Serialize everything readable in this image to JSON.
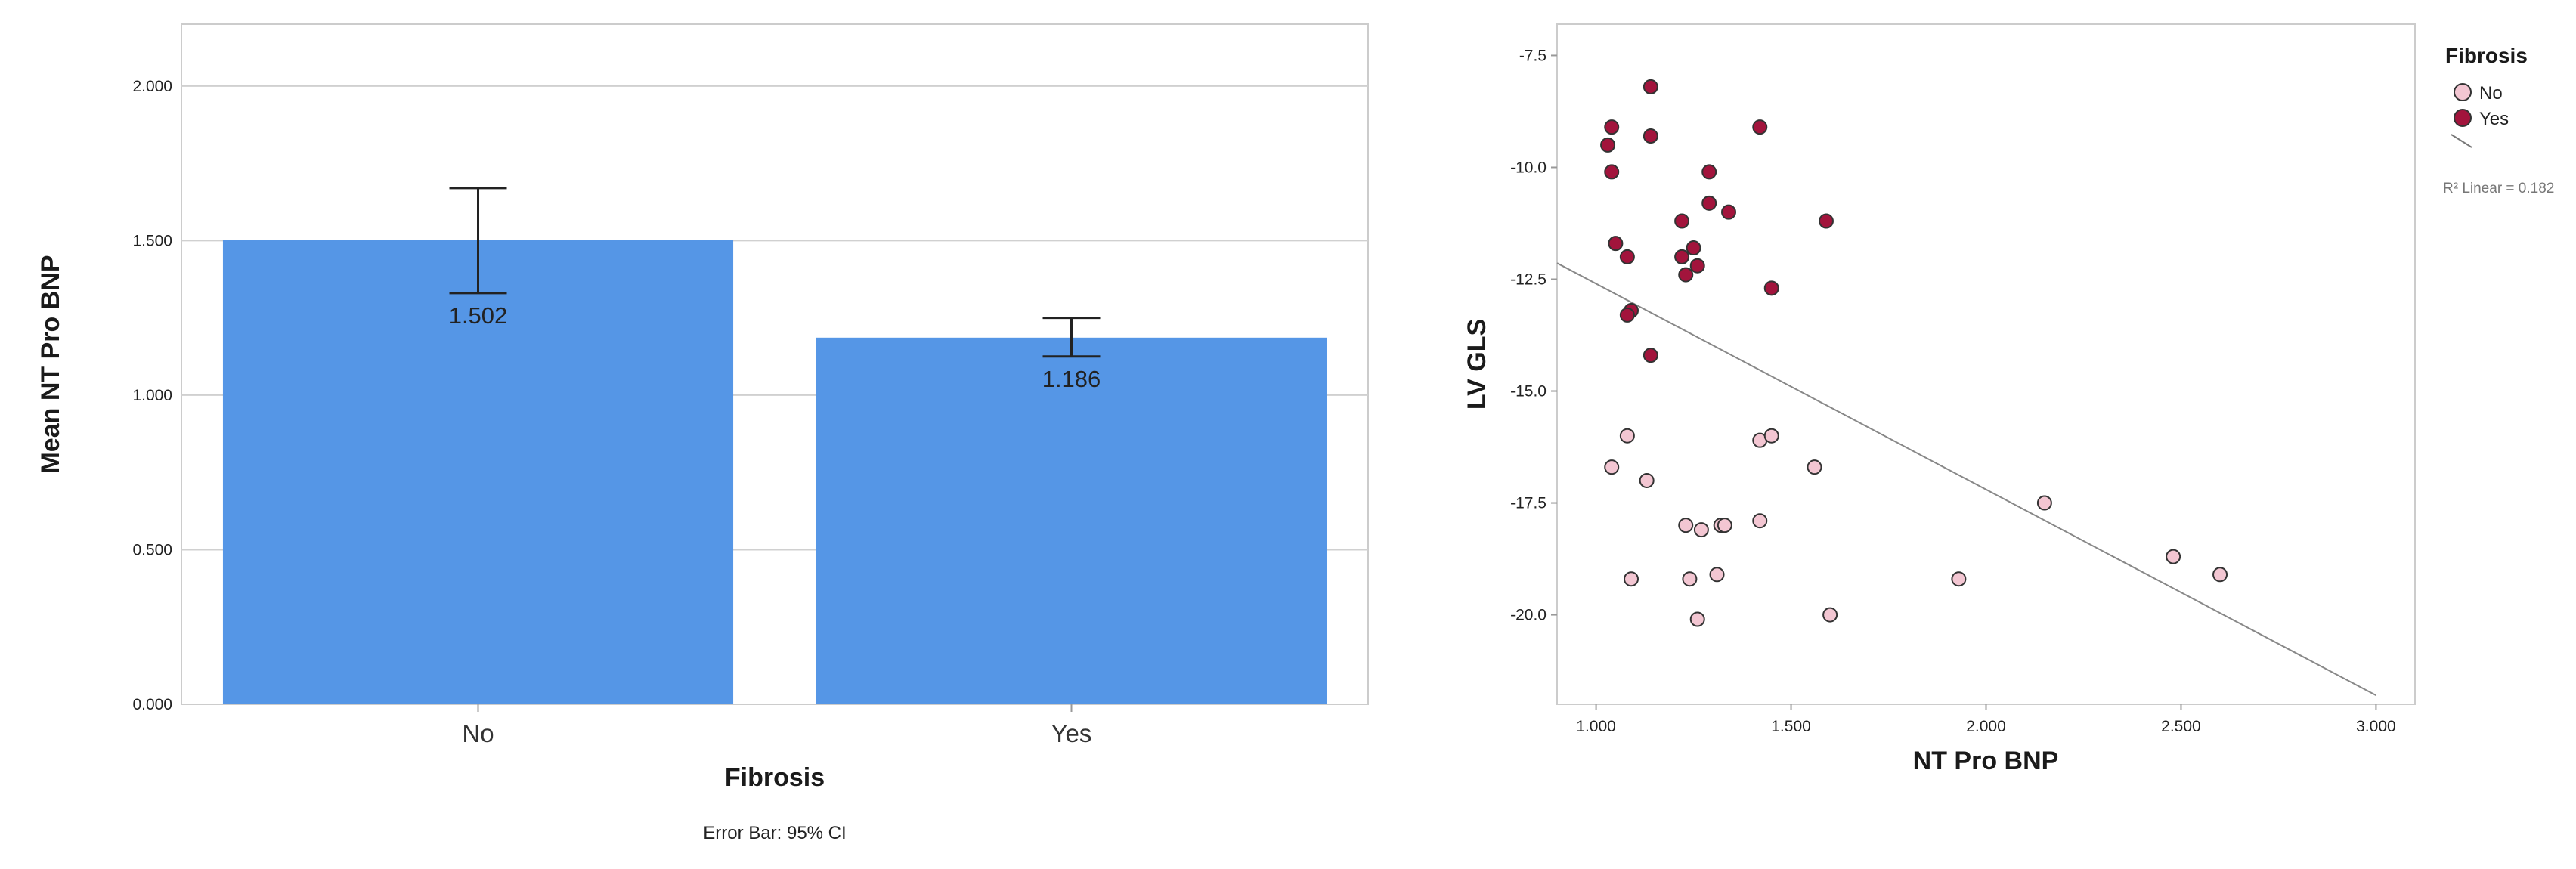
{
  "chart_data": [
    {
      "type": "bar",
      "categories": [
        "No",
        "Yes"
      ],
      "values": [
        1.502,
        1.186
      ],
      "value_labels": [
        "1.502",
        "1.186"
      ],
      "error_bars": [
        [
          1.33,
          1.67
        ],
        [
          1.125,
          1.25
        ]
      ],
      "xlabel": "Fibrosis",
      "ylabel": "Mean NT Pro BNP",
      "ylim": [
        0,
        2.2
      ],
      "yticks": [
        0,
        0.5,
        1.0,
        1.5,
        2.0
      ],
      "ytick_labels": [
        "0.000",
        "0.500",
        "1.000",
        "1.500",
        "2.000"
      ],
      "footnote": "Error Bar: 95% CI",
      "grid": true,
      "bar_color": "#5596e6"
    },
    {
      "type": "scatter",
      "xlabel": "NT Pro BNP",
      "ylabel": "LV GLS",
      "xlim": [
        0.9,
        3.1
      ],
      "ylim": [
        -22.0,
        -6.8
      ],
      "xticks": [
        1.0,
        1.5,
        2.0,
        2.5,
        3.0
      ],
      "xtick_labels": [
        "1.000",
        "1.500",
        "2.000",
        "2.500",
        "3.000"
      ],
      "yticks": [
        -7.5,
        -10.0,
        -12.5,
        -15.0,
        -17.5,
        -20.0
      ],
      "ytick_labels": [
        "-7.5",
        "-10.0",
        "-12.5",
        "-15.0",
        "-17.5",
        "-20.0"
      ],
      "legend": {
        "title": "Fibrosis",
        "position": "top-right",
        "entries": [
          {
            "label": "No",
            "color": "#f3c6d2"
          },
          {
            "label": "Yes",
            "color": "#a2143c"
          }
        ],
        "fit_label": "R² Linear = 0.182"
      },
      "series": [
        {
          "name": "Yes",
          "color": "#a2143c",
          "points": [
            [
              1.14,
              -8.2
            ],
            [
              1.04,
              -9.1
            ],
            [
              1.03,
              -9.5
            ],
            [
              1.14,
              -9.3
            ],
            [
              1.42,
              -9.1
            ],
            [
              1.04,
              -10.1
            ],
            [
              1.29,
              -10.1
            ],
            [
              1.29,
              -10.8
            ],
            [
              1.34,
              -11.0
            ],
            [
              1.22,
              -11.2
            ],
            [
              1.59,
              -11.2
            ],
            [
              1.05,
              -11.7
            ],
            [
              1.25,
              -11.8
            ],
            [
              1.08,
              -12.0
            ],
            [
              1.22,
              -12.0
            ],
            [
              1.26,
              -12.2
            ],
            [
              1.23,
              -12.4
            ],
            [
              1.45,
              -12.7
            ],
            [
              1.09,
              -13.2
            ],
            [
              1.08,
              -13.3
            ],
            [
              1.14,
              -14.2
            ]
          ]
        },
        {
          "name": "No",
          "color": "#f3c6d2",
          "points": [
            [
              1.08,
              -16.0
            ],
            [
              1.42,
              -16.1
            ],
            [
              1.45,
              -16.0
            ],
            [
              1.04,
              -16.7
            ],
            [
              1.56,
              -16.7
            ],
            [
              1.13,
              -17.0
            ],
            [
              2.15,
              -17.5
            ],
            [
              1.23,
              -18.0
            ],
            [
              1.27,
              -18.1
            ],
            [
              1.32,
              -18.0
            ],
            [
              1.33,
              -18.0
            ],
            [
              1.42,
              -17.9
            ],
            [
              2.48,
              -18.7
            ],
            [
              1.09,
              -19.2
            ],
            [
              1.24,
              -19.2
            ],
            [
              1.31,
              -19.1
            ],
            [
              1.93,
              -19.2
            ],
            [
              2.6,
              -19.1
            ],
            [
              1.26,
              -20.1
            ],
            [
              1.6,
              -20.0
            ]
          ]
        }
      ],
      "fit_line": {
        "slope": -4.6,
        "intercept": -8.0,
        "x_range": [
          0.9,
          3.0
        ]
      }
    }
  ]
}
